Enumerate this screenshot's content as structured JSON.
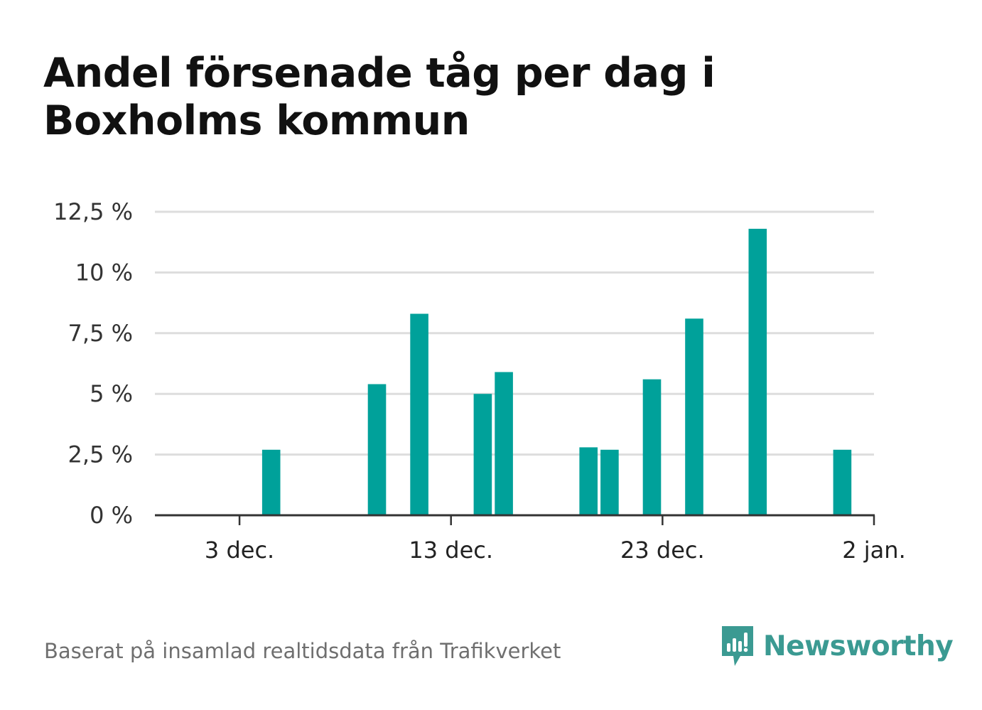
{
  "title": "Andel försenade tåg per dag i Boxholms kommun",
  "footer": {
    "source": "Baserat på insamlad realtidsdata från Trafikverket",
    "brand": "Newsworthy"
  },
  "colors": {
    "bar": "#00a19a",
    "grid": "#dddddd",
    "axis": "#333333",
    "brand": "#3b9a92"
  },
  "chart_data": {
    "type": "bar",
    "title": "Andel försenade tåg per dag i Boxholms kommun",
    "xlabel": "",
    "ylabel": "",
    "ylim": [
      0,
      12.5
    ],
    "xlim": [
      "2024-11-29",
      "2025-01-02"
    ],
    "x_ticks": [
      {
        "date": "2024-12-03",
        "label": "3 dec."
      },
      {
        "date": "2024-12-13",
        "label": "13 dec."
      },
      {
        "date": "2024-12-23",
        "label": "23 dec."
      },
      {
        "date": "2025-01-02",
        "label": "2 jan."
      }
    ],
    "y_ticks": [
      {
        "value": 0,
        "label": "0 %"
      },
      {
        "value": 2.5,
        "label": "2,5 %"
      },
      {
        "value": 5,
        "label": "5 %"
      },
      {
        "value": 7.5,
        "label": "7,5 %"
      },
      {
        "value": 10,
        "label": "10 %"
      },
      {
        "value": 12.5,
        "label": "12,5 %"
      }
    ],
    "grid": true,
    "legend": "none",
    "series": [
      {
        "points": [
          {
            "date": "2024-12-04",
            "value": 2.7
          },
          {
            "date": "2024-12-09",
            "value": 5.4
          },
          {
            "date": "2024-12-11",
            "value": 8.3
          },
          {
            "date": "2024-12-14",
            "value": 5.0
          },
          {
            "date": "2024-12-15",
            "value": 5.9
          },
          {
            "date": "2024-12-19",
            "value": 2.8
          },
          {
            "date": "2024-12-20",
            "value": 2.7
          },
          {
            "date": "2024-12-22",
            "value": 5.6
          },
          {
            "date": "2024-12-24",
            "value": 8.1
          },
          {
            "date": "2024-12-27",
            "value": 11.8
          },
          {
            "date": "2024-12-31",
            "value": 2.7
          }
        ]
      }
    ]
  }
}
